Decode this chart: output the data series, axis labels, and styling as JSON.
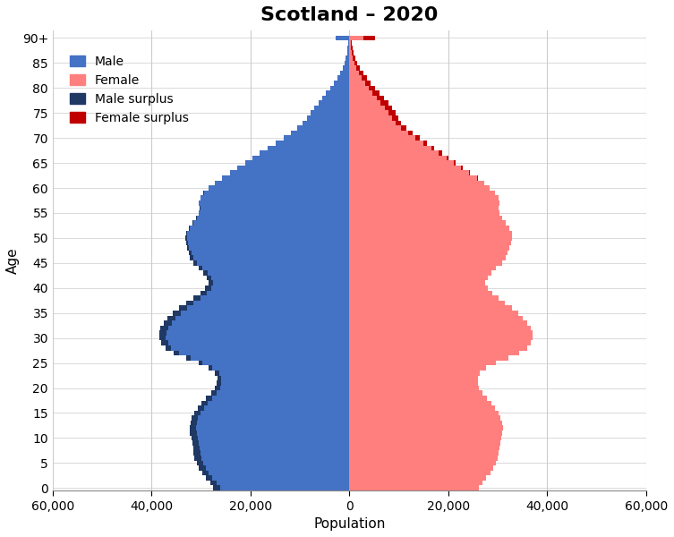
{
  "title": "Scotland – 2020",
  "xlabel": "Population",
  "ylabel": "Age",
  "xlim": 60000,
  "male_color": "#4472C4",
  "female_color": "#FF7F7F",
  "male_surplus_color": "#1F3864",
  "female_surplus_color": "#C00000",
  "background_color": "#FFFFFF",
  "grid_color": "#CCCCCC",
  "ages": [
    0,
    1,
    2,
    3,
    4,
    5,
    6,
    7,
    8,
    9,
    10,
    11,
    12,
    13,
    14,
    15,
    16,
    17,
    18,
    19,
    20,
    21,
    22,
    23,
    24,
    25,
    26,
    27,
    28,
    29,
    30,
    31,
    32,
    33,
    34,
    35,
    36,
    37,
    38,
    39,
    40,
    41,
    42,
    43,
    44,
    45,
    46,
    47,
    48,
    49,
    50,
    51,
    52,
    53,
    54,
    55,
    56,
    57,
    58,
    59,
    60,
    61,
    62,
    63,
    64,
    65,
    66,
    67,
    68,
    69,
    70,
    71,
    72,
    73,
    74,
    75,
    76,
    77,
    78,
    79,
    80,
    81,
    82,
    83,
    84,
    85,
    86,
    87,
    88,
    89,
    90
  ],
  "male": [
    27500,
    28200,
    29000,
    29800,
    30400,
    30900,
    31300,
    31500,
    31600,
    31800,
    32000,
    32200,
    32300,
    32100,
    31900,
    31400,
    30700,
    30000,
    29000,
    28000,
    27200,
    26800,
    26700,
    27200,
    28500,
    30500,
    33000,
    35500,
    37200,
    38000,
    38500,
    38500,
    38200,
    37600,
    36800,
    35800,
    34500,
    33000,
    31500,
    30200,
    29200,
    28500,
    28800,
    29500,
    30500,
    31500,
    32200,
    32500,
    32800,
    33000,
    33200,
    33000,
    32500,
    31800,
    31000,
    30500,
    30300,
    30500,
    30200,
    29500,
    28500,
    27200,
    25800,
    24200,
    22600,
    21100,
    19600,
    18100,
    16500,
    14900,
    13300,
    11800,
    10500,
    9400,
    8600,
    7900,
    7100,
    6300,
    5500,
    4700,
    3900,
    3200,
    2500,
    1900,
    1400,
    1000,
    720,
    510,
    350,
    230,
    2800
  ],
  "female": [
    26200,
    26900,
    27700,
    28500,
    29100,
    29600,
    30000,
    30200,
    30300,
    30500,
    30700,
    30900,
    31000,
    30800,
    30600,
    30100,
    29400,
    28700,
    27800,
    26900,
    26200,
    25900,
    25900,
    26400,
    27700,
    29700,
    32100,
    34400,
    36000,
    36700,
    37100,
    37000,
    36600,
    35900,
    35100,
    34100,
    32900,
    31500,
    30100,
    28900,
    28000,
    27500,
    27900,
    28700,
    29700,
    30800,
    31600,
    32000,
    32400,
    32700,
    32900,
    32800,
    32300,
    31600,
    30800,
    30400,
    30200,
    30400,
    30100,
    29400,
    28400,
    27200,
    25900,
    24400,
    22900,
    21500,
    20100,
    18700,
    17200,
    15700,
    14200,
    12800,
    11500,
    10500,
    9900,
    9400,
    8700,
    7900,
    7000,
    6000,
    5100,
    4300,
    3500,
    2800,
    2100,
    1600,
    1150,
    830,
    590,
    400,
    5200
  ]
}
